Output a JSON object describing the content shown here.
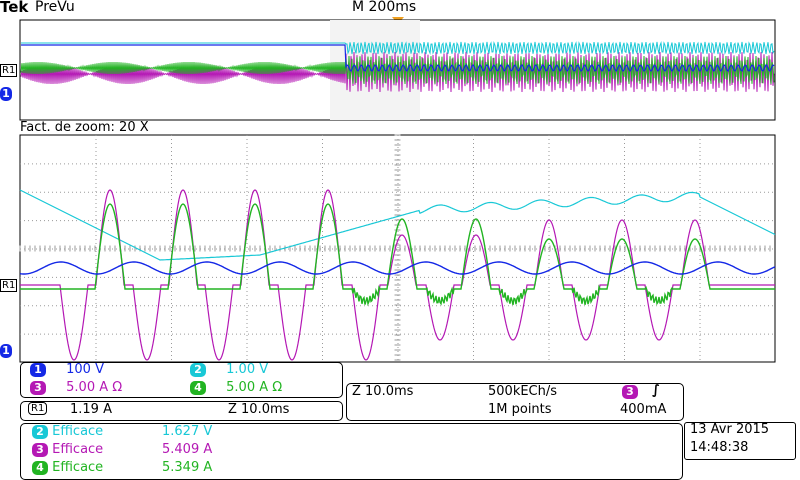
{
  "header": {
    "brand": "Tek",
    "mode": "PreVu",
    "timebase": "M 200ms"
  },
  "zoom_label": "Fact. de zoom: 20 X",
  "markers": {
    "r1": "R1",
    "ch1": "1"
  },
  "channels": [
    {
      "num": "1",
      "scale": "100 V",
      "color": "#1428e6"
    },
    {
      "num": "2",
      "scale": "1.00 V",
      "color": "#18c8d6"
    },
    {
      "num": "3",
      "scale": "5.00 A Ω",
      "color": "#b418b4"
    },
    {
      "num": "4",
      "scale": "5.00 A Ω",
      "color": "#22b422"
    }
  ],
  "ref": {
    "label": "R1",
    "scale": "1.19 A",
    "zoom": "Z 10.0ms"
  },
  "acquisition": {
    "zoom": "Z 10.0ms",
    "rate": "500kECh/s",
    "points": "1M points",
    "trigger_channel": "3",
    "trigger_slope": "∫",
    "trigger_level": "400mA"
  },
  "measurements": [
    {
      "channel": "2",
      "name": "Efficace",
      "value": "1.627 V",
      "color": "#18c8d6"
    },
    {
      "channel": "3",
      "name": "Efficace",
      "value": "5.409 A",
      "color": "#b418b4"
    },
    {
      "channel": "4",
      "name": "Efficace",
      "value": "5.349 A",
      "color": "#22b422"
    }
  ],
  "datetime": {
    "date": "13 Avr  2015",
    "time": "14:48:38"
  },
  "colors": {
    "grid": "#9a9a9a",
    "text_ch1": "#1428e6",
    "marker_orange": "#f0a020"
  }
}
